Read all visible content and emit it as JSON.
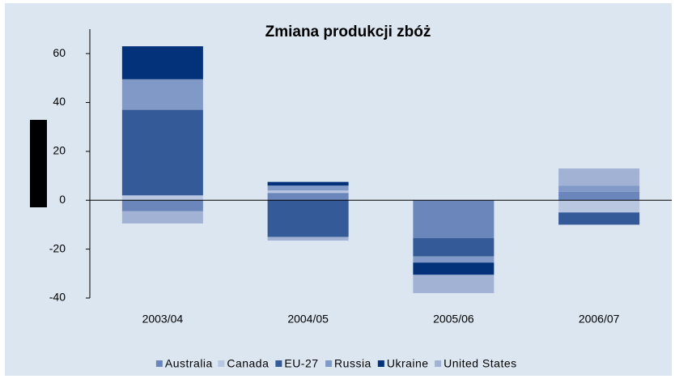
{
  "chart_data": {
    "type": "stacked_bar",
    "title": "Zmiana produkcji zbóż",
    "categories": [
      "2003/04",
      "2004/05",
      "2005/06",
      "2006/07"
    ],
    "series": [
      {
        "name": "Australia",
        "color": "#6a86bb",
        "values": [
          -4.5,
          3,
          -15.5,
          3.5
        ]
      },
      {
        "name": "Canada",
        "color": "#b9c7e1",
        "values": [
          2,
          1,
          0,
          -5
        ]
      },
      {
        "name": "EU-27",
        "color": "#345a97",
        "values": [
          35,
          -15,
          -7.5,
          -5
        ]
      },
      {
        "name": "Russia",
        "color": "#8099c6",
        "values": [
          12.5,
          2,
          -2.5,
          2.5
        ]
      },
      {
        "name": "Ukraine",
        "color": "#03327a",
        "values": [
          13.5,
          1.5,
          -5,
          0
        ]
      },
      {
        "name": "United States",
        "color": "#a1b2d5",
        "values": [
          -5,
          -1.5,
          -7.5,
          7
        ]
      }
    ],
    "ylim": [
      -40,
      70
    ],
    "yticks": [
      -40,
      -20,
      0,
      20,
      40,
      60
    ],
    "legend": "bottom"
  }
}
